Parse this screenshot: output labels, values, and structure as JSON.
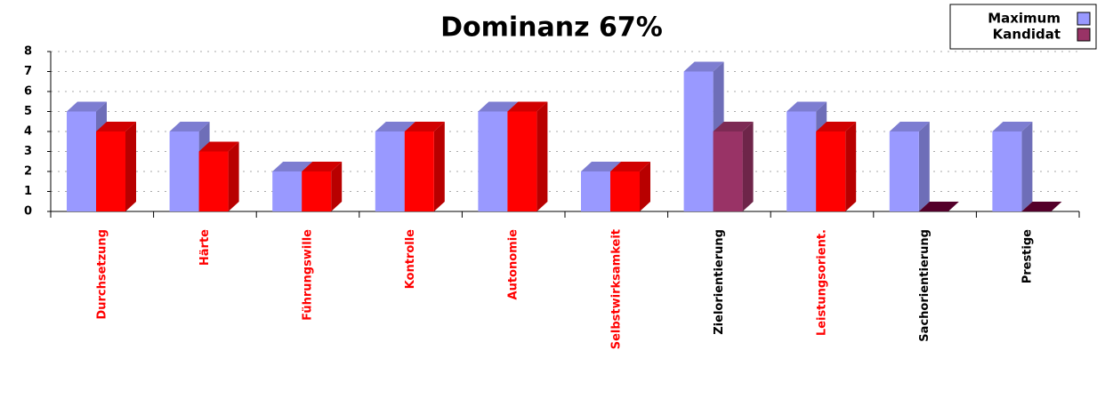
{
  "chart_data": {
    "type": "bar3d",
    "title": "Dominanz 67%",
    "categories": [
      "Durchsetzung",
      "Härte",
      "Führungswille",
      "Kontrolle",
      "Autonomie",
      "Selbstwirksamkeit",
      "Zielorientierung",
      "Leistungsorient.",
      "Sachorientierung",
      "Prestige"
    ],
    "label_colors": [
      "#ff0000",
      "#ff0000",
      "#ff0000",
      "#ff0000",
      "#ff0000",
      "#ff0000",
      "#000000",
      "#ff0000",
      "#000000",
      "#000000"
    ],
    "series": [
      {
        "name": "Maximum",
        "color": "#9999ff",
        "values": [
          5,
          4,
          2,
          4,
          5,
          2,
          7,
          5,
          4,
          4
        ]
      },
      {
        "name": "Kandidat",
        "color": "#993366",
        "values": [
          4,
          3,
          2,
          4,
          5,
          2,
          4,
          4,
          0,
          0
        ],
        "point_colors": [
          "#ff0000",
          "#ff0000",
          "#ff0000",
          "#ff0000",
          "#ff0000",
          "#ff0000",
          "#993366",
          "#ff0000",
          "#660033",
          "#660033"
        ]
      }
    ],
    "ylim": [
      0,
      8
    ],
    "yticks": [
      0,
      1,
      2,
      3,
      4,
      5,
      6,
      7,
      8
    ],
    "grid": true,
    "legend": "top-right"
  }
}
